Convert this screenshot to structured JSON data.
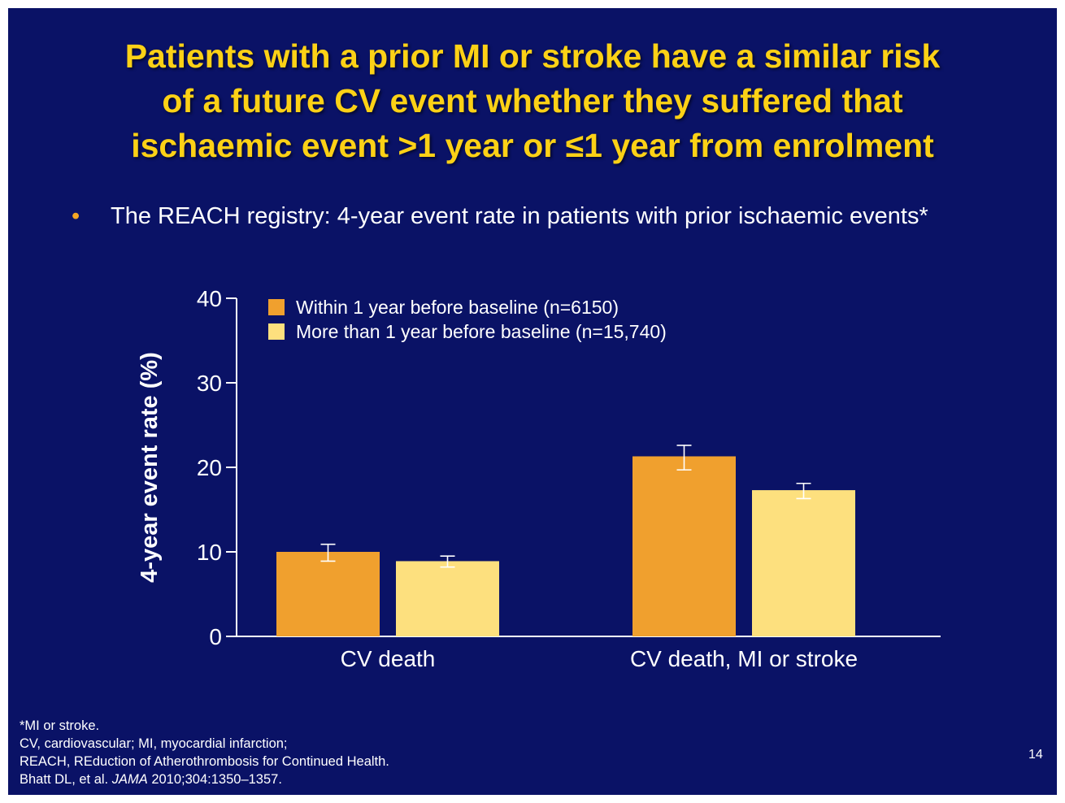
{
  "slide": {
    "title_lines": [
      "Patients with a prior MI or stroke have a similar risk",
      "of a future CV event whether they suffered that",
      "ischaemic event >1 year or ≤1 year from enrolment"
    ],
    "bullet_marker": "•",
    "bullet_text": "The REACH registry: 4-year event rate in patients with prior ischaemic events*",
    "footnotes": {
      "line1": "*MI or stroke.",
      "line2": "CV, cardiovascular; MI, myocardial infarction;",
      "line3": "REACH, REduction of Atherothrombosis for Continued Health.",
      "line4_author": "Bhatt DL, et al. ",
      "line4_journal": "JAMA",
      "line4_rest": " 2010;304:1350–1357."
    },
    "page_number": "14"
  },
  "colors": {
    "background": "#0a1266",
    "title": "#fcd116",
    "text": "#ffffff",
    "bullet": "#f5a623"
  },
  "chart_data": {
    "type": "bar",
    "title": "",
    "xlabel": "",
    "ylabel": "4-year event rate (%)",
    "ylim": [
      0,
      40
    ],
    "yticks": [
      0,
      10,
      20,
      30,
      40
    ],
    "categories": [
      "CV death",
      "CV death, MI or stroke"
    ],
    "series": [
      {
        "name": "Within 1 year before baseline (n=6150)",
        "color": "#f0a02e",
        "values": [
          10.0,
          21.3
        ],
        "error_low": [
          8.9,
          19.7
        ],
        "error_high": [
          10.9,
          22.6
        ]
      },
      {
        "name": "More than 1 year before baseline (n=15,740)",
        "color": "#fde07e",
        "values": [
          8.9,
          17.3
        ],
        "error_low": [
          8.2,
          16.3
        ],
        "error_high": [
          9.5,
          18.1
        ]
      }
    ],
    "legend_position": "top-left",
    "grid": false
  }
}
